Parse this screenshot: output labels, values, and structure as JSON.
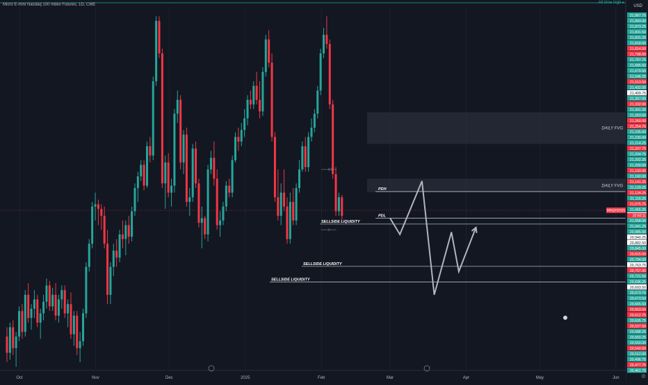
{
  "title": "Micro E-mini Nasdaq 100 Index Futures, 1D, CME",
  "ath_label": "All time high",
  "currency": "USD",
  "ticker_badge": "MNQH2025",
  "countdown": "20:50:11",
  "zones": [
    {
      "label": "DAILY FVG",
      "top": 21546.25,
      "bottom": 21409.75
    },
    {
      "label": "DAILY FVG",
      "top": 21260.0,
      "bottom": 21202.25
    }
  ],
  "levels": [
    {
      "label": "PDH",
      "price": 21204.75
    },
    {
      "label": "PDL",
      "price": 21090.0
    },
    {
      "label": "SELLSIDE LIQUIDITY",
      "price": 21064.75
    },
    {
      "label": "SELLSIDE LIQUIDITY",
      "price": 20882.5
    },
    {
      "label": "SELLSIDE LIQUIDITY",
      "price": 20815.0
    }
  ],
  "fib_labels": [
    "0.5",
    "1"
  ],
  "price_scale": [
    {
      "v": "21,967.75",
      "c": "#26a69a"
    },
    {
      "v": "21,893.00",
      "c": "#26a69a"
    },
    {
      "v": "21,873.25",
      "c": "#26a69a"
    },
    {
      "v": "21,831.50",
      "c": "#26a69a"
    },
    {
      "v": "21,831.25",
      "c": "#26a69a"
    },
    {
      "v": "21,818.00",
      "c": "#26a69a"
    },
    {
      "v": "21,814.50",
      "c": "#f23645"
    },
    {
      "v": "21,798.00",
      "c": "#f23645"
    },
    {
      "v": "21,797.75",
      "c": "#26a69a"
    },
    {
      "v": "21,685.50",
      "c": "#26a69a"
    },
    {
      "v": "21,679.50",
      "c": "#26a69a"
    },
    {
      "v": "21,546.25",
      "c": "#26a69a"
    },
    {
      "v": "21,513.50",
      "c": "#f23645"
    },
    {
      "v": "21,432.00",
      "c": "#26a69a"
    },
    {
      "v": "21,409.75",
      "c": "#ffffff"
    },
    {
      "v": "21,357.00",
      "c": "#26a69a"
    },
    {
      "v": "21,332.00",
      "c": "#f23645"
    },
    {
      "v": "21,301.25",
      "c": "#26a69a"
    },
    {
      "v": "21,263.50",
      "c": "#26a69a"
    },
    {
      "v": "21,260.00",
      "c": "#f23645"
    },
    {
      "v": "21,254.75",
      "c": "#f23645"
    },
    {
      "v": "21,235.00",
      "c": "#26a69a"
    },
    {
      "v": "21,230.00",
      "c": "#26a69a"
    },
    {
      "v": "21,214.25",
      "c": "#26a69a"
    },
    {
      "v": "21,207.75",
      "c": "#f23645"
    },
    {
      "v": "21,204.75",
      "c": "#26a69a"
    },
    {
      "v": "21,202.25",
      "c": "#26a69a"
    },
    {
      "v": "21,200.00",
      "c": "#26a69a"
    },
    {
      "v": "21,193.00",
      "c": "#f23645"
    },
    {
      "v": "21,160.00",
      "c": "#26a69a"
    },
    {
      "v": "21,141.25",
      "c": "#f23645"
    },
    {
      "v": "21,129.25",
      "c": "#26a69a"
    },
    {
      "v": "21,124.25",
      "c": "#f23645"
    },
    {
      "v": "21,116.25",
      "c": "#26a69a"
    },
    {
      "v": "21,075.75",
      "c": "#f23645"
    },
    {
      "v": "21,065.25",
      "c": "#26a69a"
    },
    {
      "v": "21,064.75",
      "c": "#ffffff"
    },
    {
      "v": "21,058.00",
      "c": "#26a69a"
    },
    {
      "v": "21,041.25",
      "c": "#26a69a"
    },
    {
      "v": "20,985.00",
      "c": "#26a69a"
    },
    {
      "v": "20,940.25",
      "c": "#ffffff"
    },
    {
      "v": "20,882.50",
      "c": "#ffffff"
    },
    {
      "v": "20,845.00",
      "c": "#26a69a"
    },
    {
      "v": "20,815.00",
      "c": "#f23645"
    },
    {
      "v": "20,794.00",
      "c": "#26a69a"
    },
    {
      "v": "20,763.75",
      "c": "#ffffff"
    },
    {
      "v": "20,757.00",
      "c": "#f23645"
    },
    {
      "v": "20,721.50",
      "c": "#26a69a"
    },
    {
      "v": "20,696.25",
      "c": "#26a69a"
    },
    {
      "v": "20,693.50",
      "c": "#ffffff"
    },
    {
      "v": "20,673.75",
      "c": "#26a69a"
    },
    {
      "v": "20,673.50",
      "c": "#26a69a"
    },
    {
      "v": "20,665.50",
      "c": "#26a69a"
    },
    {
      "v": "20,653.50",
      "c": "#f23645"
    },
    {
      "v": "20,612.75",
      "c": "#f23645"
    },
    {
      "v": "20,605.75",
      "c": "#26a69a"
    },
    {
      "v": "20,597.50",
      "c": "#f23645"
    },
    {
      "v": "20,588.25",
      "c": "#26a69a"
    },
    {
      "v": "20,550.25",
      "c": "#26a69a"
    },
    {
      "v": "20,550.00",
      "c": "#26a69a"
    },
    {
      "v": "20,540.50",
      "c": "#f23645"
    },
    {
      "v": "20,512.00",
      "c": "#26a69a"
    },
    {
      "v": "20,496.75",
      "c": "#26a69a"
    },
    {
      "v": "20,477.75",
      "c": "#f23645"
    },
    {
      "v": "20,461.75",
      "c": "#26a69a"
    }
  ],
  "time_axis": [
    {
      "label": "Oct",
      "day": 0
    },
    {
      "label": "Nov",
      "day": 31
    },
    {
      "label": "Dec",
      "day": 61
    },
    {
      "label": "2025",
      "day": 92
    },
    {
      "label": "Feb",
      "day": 123
    },
    {
      "label": "Mar",
      "day": 151
    },
    {
      "label": "Apr",
      "day": 182
    },
    {
      "label": "May",
      "day": 212
    },
    {
      "label": "Jun",
      "day": 243
    }
  ],
  "chart_data": {
    "type": "candlestick",
    "instrument": "Micro E-mini Nasdaq 100 Index Futures",
    "timeframe": "1D",
    "ylim": [
      20440,
      22000
    ],
    "candles": [
      {
        "o": 20580,
        "h": 20620,
        "l": 20470,
        "c": 20510
      },
      {
        "o": 20510,
        "h": 20640,
        "l": 20480,
        "c": 20620
      },
      {
        "o": 20620,
        "h": 20650,
        "l": 20500,
        "c": 20530
      },
      {
        "o": 20530,
        "h": 20600,
        "l": 20450,
        "c": 20580
      },
      {
        "o": 20580,
        "h": 20710,
        "l": 20560,
        "c": 20690
      },
      {
        "o": 20690,
        "h": 20720,
        "l": 20570,
        "c": 20600
      },
      {
        "o": 20600,
        "h": 20780,
        "l": 20580,
        "c": 20760
      },
      {
        "o": 20760,
        "h": 20810,
        "l": 20640,
        "c": 20660
      },
      {
        "o": 20660,
        "h": 20720,
        "l": 20610,
        "c": 20700
      },
      {
        "o": 20700,
        "h": 20780,
        "l": 20660,
        "c": 20740
      },
      {
        "o": 20740,
        "h": 20760,
        "l": 20620,
        "c": 20640
      },
      {
        "o": 20640,
        "h": 20700,
        "l": 20570,
        "c": 20680
      },
      {
        "o": 20680,
        "h": 20760,
        "l": 20650,
        "c": 20730
      },
      {
        "o": 20730,
        "h": 20830,
        "l": 20700,
        "c": 20800
      },
      {
        "o": 20800,
        "h": 20820,
        "l": 20690,
        "c": 20710
      },
      {
        "o": 20710,
        "h": 20790,
        "l": 20690,
        "c": 20760
      },
      {
        "o": 20760,
        "h": 20810,
        "l": 20650,
        "c": 20670
      },
      {
        "o": 20670,
        "h": 20760,
        "l": 20640,
        "c": 20740
      },
      {
        "o": 20740,
        "h": 20800,
        "l": 20700,
        "c": 20780
      },
      {
        "o": 20780,
        "h": 20800,
        "l": 20660,
        "c": 20680
      },
      {
        "o": 20680,
        "h": 20740,
        "l": 20620,
        "c": 20720
      },
      {
        "o": 20720,
        "h": 20770,
        "l": 20570,
        "c": 20590
      },
      {
        "o": 20590,
        "h": 20690,
        "l": 20540,
        "c": 20670
      },
      {
        "o": 20670,
        "h": 20690,
        "l": 20500,
        "c": 20530
      },
      {
        "o": 20530,
        "h": 20600,
        "l": 20470,
        "c": 20560
      },
      {
        "o": 20560,
        "h": 20700,
        "l": 20540,
        "c": 20680
      },
      {
        "o": 20680,
        "h": 20900,
        "l": 20660,
        "c": 20880
      },
      {
        "o": 20880,
        "h": 21000,
        "l": 20860,
        "c": 20980
      },
      {
        "o": 20980,
        "h": 21160,
        "l": 20960,
        "c": 21140
      },
      {
        "o": 21140,
        "h": 21200,
        "l": 21080,
        "c": 21150
      },
      {
        "o": 21150,
        "h": 21170,
        "l": 21060,
        "c": 21130
      },
      {
        "o": 21130,
        "h": 21150,
        "l": 21040,
        "c": 21100
      },
      {
        "o": 21100,
        "h": 21140,
        "l": 20960,
        "c": 20980
      },
      {
        "o": 20980,
        "h": 21040,
        "l": 20720,
        "c": 20760
      },
      {
        "o": 20760,
        "h": 20900,
        "l": 20720,
        "c": 20880
      },
      {
        "o": 20880,
        "h": 20980,
        "l": 20840,
        "c": 20950
      },
      {
        "o": 20950,
        "h": 21000,
        "l": 20880,
        "c": 20920
      },
      {
        "o": 20920,
        "h": 21040,
        "l": 20900,
        "c": 21020
      },
      {
        "o": 21020,
        "h": 21080,
        "l": 20960,
        "c": 21000
      },
      {
        "o": 21000,
        "h": 21080,
        "l": 20930,
        "c": 21060
      },
      {
        "o": 21060,
        "h": 21100,
        "l": 20980,
        "c": 21010
      },
      {
        "o": 21010,
        "h": 21140,
        "l": 20990,
        "c": 21120
      },
      {
        "o": 21120,
        "h": 21240,
        "l": 21100,
        "c": 21220
      },
      {
        "o": 21220,
        "h": 21290,
        "l": 21160,
        "c": 21270
      },
      {
        "o": 21270,
        "h": 21340,
        "l": 21250,
        "c": 21320
      },
      {
        "o": 21320,
        "h": 21340,
        "l": 21210,
        "c": 21230
      },
      {
        "o": 21230,
        "h": 21420,
        "l": 21220,
        "c": 21400
      },
      {
        "o": 21400,
        "h": 21440,
        "l": 21330,
        "c": 21360
      },
      {
        "o": 21360,
        "h": 21700,
        "l": 21340,
        "c": 21680
      },
      {
        "o": 21680,
        "h": 21960,
        "l": 21660,
        "c": 21940
      },
      {
        "o": 21940,
        "h": 21960,
        "l": 21780,
        "c": 21800
      },
      {
        "o": 21800,
        "h": 21820,
        "l": 21220,
        "c": 21240
      },
      {
        "o": 21240,
        "h": 21360,
        "l": 21130,
        "c": 21330
      },
      {
        "o": 21330,
        "h": 21370,
        "l": 21180,
        "c": 21200
      },
      {
        "o": 21200,
        "h": 21260,
        "l": 21140,
        "c": 21230
      },
      {
        "o": 21230,
        "h": 21560,
        "l": 21200,
        "c": 21540
      },
      {
        "o": 21540,
        "h": 21640,
        "l": 21500,
        "c": 21600
      },
      {
        "o": 21600,
        "h": 21620,
        "l": 21300,
        "c": 21330
      },
      {
        "o": 21330,
        "h": 21470,
        "l": 21280,
        "c": 21450
      },
      {
        "o": 21450,
        "h": 21480,
        "l": 21140,
        "c": 21160
      },
      {
        "o": 21160,
        "h": 21220,
        "l": 21100,
        "c": 21180
      },
      {
        "o": 21180,
        "h": 21410,
        "l": 21160,
        "c": 21390
      },
      {
        "o": 21390,
        "h": 21420,
        "l": 21220,
        "c": 21240
      },
      {
        "o": 21240,
        "h": 21260,
        "l": 21050,
        "c": 21070
      },
      {
        "o": 21070,
        "h": 21140,
        "l": 20960,
        "c": 21090
      },
      {
        "o": 21090,
        "h": 21100,
        "l": 21000,
        "c": 21020
      },
      {
        "o": 21020,
        "h": 21320,
        "l": 20990,
        "c": 21300
      },
      {
        "o": 21300,
        "h": 21380,
        "l": 21280,
        "c": 21350
      },
      {
        "o": 21350,
        "h": 21420,
        "l": 21230,
        "c": 21260
      },
      {
        "o": 21260,
        "h": 21300,
        "l": 21040,
        "c": 21060
      },
      {
        "o": 21060,
        "h": 21120,
        "l": 21010,
        "c": 21080
      },
      {
        "o": 21080,
        "h": 21160,
        "l": 21060,
        "c": 21140
      },
      {
        "o": 21140,
        "h": 21250,
        "l": 21120,
        "c": 21230
      },
      {
        "o": 21230,
        "h": 21260,
        "l": 21180,
        "c": 21200
      },
      {
        "o": 21200,
        "h": 21360,
        "l": 21180,
        "c": 21340
      },
      {
        "o": 21340,
        "h": 21460,
        "l": 21330,
        "c": 21440
      },
      {
        "o": 21440,
        "h": 21480,
        "l": 21380,
        "c": 21420
      },
      {
        "o": 21420,
        "h": 21500,
        "l": 21400,
        "c": 21470
      },
      {
        "o": 21470,
        "h": 21560,
        "l": 21440,
        "c": 21520
      },
      {
        "o": 21520,
        "h": 21620,
        "l": 21490,
        "c": 21600
      },
      {
        "o": 21600,
        "h": 21640,
        "l": 21560,
        "c": 21580
      },
      {
        "o": 21580,
        "h": 21680,
        "l": 21560,
        "c": 21660
      },
      {
        "o": 21660,
        "h": 21720,
        "l": 21580,
        "c": 21600
      },
      {
        "o": 21600,
        "h": 21680,
        "l": 21520,
        "c": 21550
      },
      {
        "o": 21550,
        "h": 21740,
        "l": 21530,
        "c": 21720
      },
      {
        "o": 21720,
        "h": 21880,
        "l": 21700,
        "c": 21860
      },
      {
        "o": 21860,
        "h": 21900,
        "l": 21740,
        "c": 21760
      },
      {
        "o": 21760,
        "h": 21800,
        "l": 21420,
        "c": 21440
      },
      {
        "o": 21440,
        "h": 21460,
        "l": 21160,
        "c": 21180
      },
      {
        "o": 21180,
        "h": 21300,
        "l": 21080,
        "c": 21100
      },
      {
        "o": 21100,
        "h": 21240,
        "l": 21060,
        "c": 21200
      },
      {
        "o": 21200,
        "h": 21300,
        "l": 21120,
        "c": 21140
      },
      {
        "o": 21140,
        "h": 21180,
        "l": 20980,
        "c": 21000
      },
      {
        "o": 21000,
        "h": 21200,
        "l": 20980,
        "c": 21160
      },
      {
        "o": 21160,
        "h": 21220,
        "l": 21060,
        "c": 21080
      },
      {
        "o": 21080,
        "h": 21240,
        "l": 21060,
        "c": 21220
      },
      {
        "o": 21220,
        "h": 21340,
        "l": 21200,
        "c": 21300
      },
      {
        "o": 21300,
        "h": 21420,
        "l": 21290,
        "c": 21400
      },
      {
        "o": 21400,
        "h": 21440,
        "l": 21290,
        "c": 21310
      },
      {
        "o": 21310,
        "h": 21460,
        "l": 21290,
        "c": 21440
      },
      {
        "o": 21440,
        "h": 21520,
        "l": 21420,
        "c": 21480
      },
      {
        "o": 21480,
        "h": 21560,
        "l": 21460,
        "c": 21540
      },
      {
        "o": 21540,
        "h": 21660,
        "l": 21520,
        "c": 21640
      },
      {
        "o": 21640,
        "h": 21820,
        "l": 21620,
        "c": 21800
      },
      {
        "o": 21800,
        "h": 21910,
        "l": 21780,
        "c": 21880
      },
      {
        "o": 21880,
        "h": 21960,
        "l": 21820,
        "c": 21840
      },
      {
        "o": 21840,
        "h": 21860,
        "l": 21560,
        "c": 21580
      },
      {
        "o": 21580,
        "h": 21600,
        "l": 21260,
        "c": 21280
      },
      {
        "o": 21280,
        "h": 21310,
        "l": 21100,
        "c": 21120
      },
      {
        "o": 21120,
        "h": 21200,
        "l": 21100,
        "c": 21180
      },
      {
        "o": 21180,
        "h": 21190,
        "l": 21080,
        "c": 21100
      }
    ],
    "projection": [
      {
        "day": 151,
        "price": 21090
      },
      {
        "day": 155,
        "price": 21020
      },
      {
        "day": 164,
        "price": 21250
      },
      {
        "day": 169,
        "price": 20760
      },
      {
        "day": 176,
        "price": 21030
      },
      {
        "day": 179,
        "price": 20860
      },
      {
        "day": 186,
        "price": 21050
      }
    ]
  }
}
